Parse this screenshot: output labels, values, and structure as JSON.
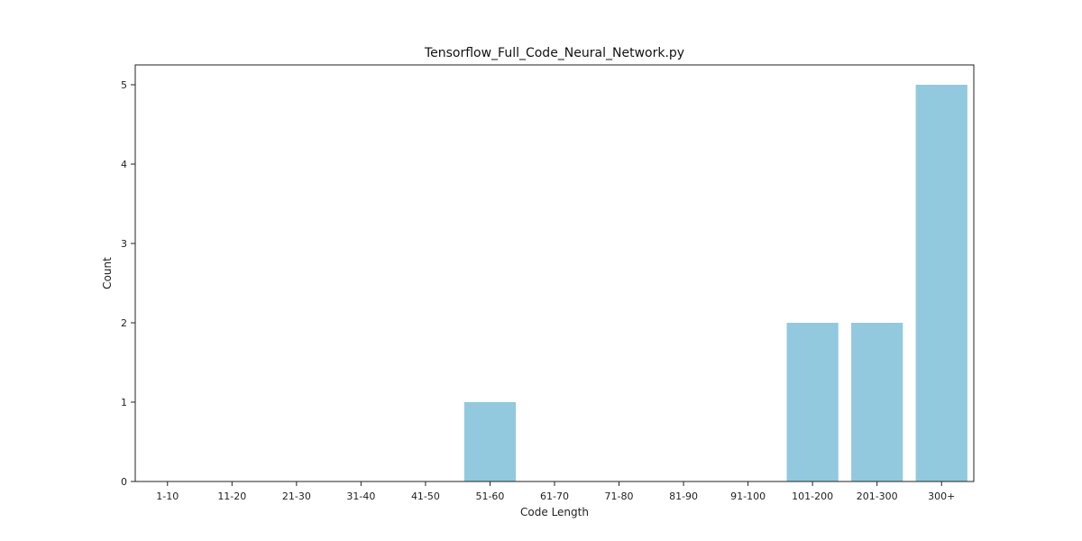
{
  "chart_data": {
    "type": "bar",
    "title": "Tensorflow_Full_Code_Neural_Network.py",
    "xlabel": "Code Length",
    "ylabel": "Count",
    "categories": [
      "1-10",
      "11-20",
      "21-30",
      "31-40",
      "41-50",
      "51-60",
      "61-70",
      "71-80",
      "81-90",
      "91-100",
      "101-200",
      "201-300",
      "300+"
    ],
    "values": [
      0,
      0,
      0,
      0,
      0,
      1,
      0,
      0,
      0,
      0,
      2,
      2,
      5
    ],
    "ylim": [
      0,
      5.25
    ],
    "yticks": [
      0,
      1,
      2,
      3,
      4,
      5
    ],
    "grid": false,
    "bar_color": "#92c9df"
  }
}
